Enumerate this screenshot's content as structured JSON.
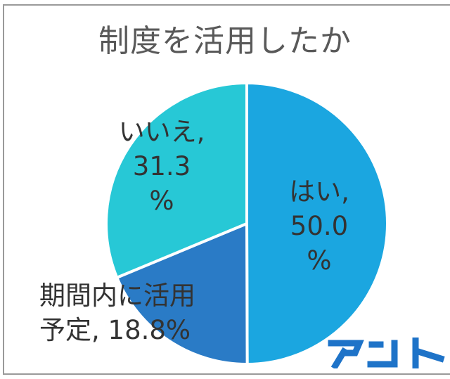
{
  "chart_data": {
    "type": "pie",
    "title": "制度を活用したか",
    "slices": [
      {
        "label": "はい",
        "value": 50.0,
        "color": "#1BA6E0",
        "text_lines": [
          "はい,",
          "50.0",
          "%"
        ]
      },
      {
        "label": "期間内に活用予定",
        "value": 18.8,
        "color": "#2A7BC6",
        "text_lines": [
          "期間内に活用",
          "予定, 18.8%"
        ]
      },
      {
        "label": "いいえ",
        "value": 31.3,
        "color": "#27C8D6",
        "text_lines": [
          "いいえ,",
          "31.3",
          "%"
        ]
      }
    ]
  },
  "logo": {
    "text": "アント",
    "color": "#1E73C8"
  }
}
